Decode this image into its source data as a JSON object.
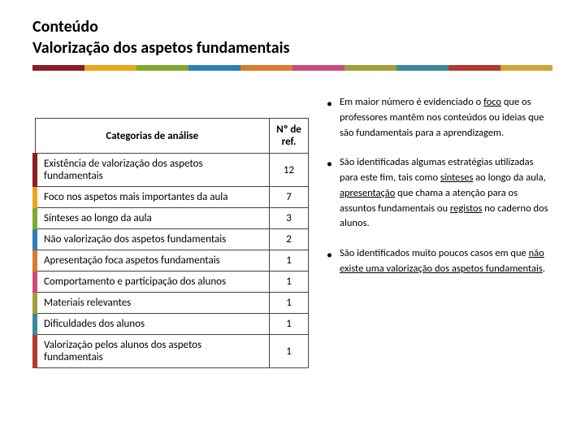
{
  "title_line1": "Conteúdo",
  "title_line2": "Valorização dos aspetos fundamentais",
  "color_bar": [
    "#8c1d24",
    "#e6a817",
    "#7fa92f",
    "#2f7fb8",
    "#d97d2a",
    "#c94c7c",
    "#a0a03c",
    "#3a8a9e",
    "#b23a2e",
    "#cfa43a"
  ],
  "table": {
    "header_cat": "Categorias de análise",
    "header_num": "Nº de ref.",
    "rows": [
      {
        "label": "Existência de valorização dos aspetos fundamentais",
        "value": "12",
        "stripe": "#8c1d24"
      },
      {
        "label": "Foco nos aspetos mais importantes da aula",
        "value": "7",
        "stripe": "#e6a817"
      },
      {
        "label": "Sínteses ao longo da aula",
        "value": "3",
        "stripe": "#7fa92f"
      },
      {
        "label": "Não valorização dos aspetos fundamentais",
        "value": "2",
        "stripe": "#2f7fb8"
      },
      {
        "label": "Apresentação foca aspetos fundamentais",
        "value": "1",
        "stripe": "#d97d2a"
      },
      {
        "label": "Comportamento e participação dos alunos",
        "value": "1",
        "stripe": "#c94c7c"
      },
      {
        "label": "Materiais relevantes",
        "value": "1",
        "stripe": "#a0a03c"
      },
      {
        "label": "Dificuldades dos alunos",
        "value": "1",
        "stripe": "#3a8a9e"
      },
      {
        "label": "Valorização pelos alunos dos aspetos fundamentais",
        "value": "1",
        "stripe": "#b23a2e"
      }
    ]
  },
  "bullets": {
    "b1_pre": "Em maior número é evidenciado o ",
    "b1_u1": "foco",
    "b1_mid": " que os professores mantêm nos conteúdos ou ideias que são fundamentais para a aprendizagem.",
    "b2_pre": "São identificadas algumas estratégias utilizadas para este fim, tais como ",
    "b2_u1": "sínteses",
    "b2_mid1": " ao longo da aula, ",
    "b2_u2": "apresentação",
    "b2_mid2": " que chama a atenção para os assuntos fundamentais ou ",
    "b2_u3": "registos",
    "b2_mid3": " no caderno dos alunos.",
    "b3_pre": "São identificados muito poucos casos em que ",
    "b3_u1": "não existe uma valorização dos aspetos fundamentais",
    "b3_end": "."
  }
}
